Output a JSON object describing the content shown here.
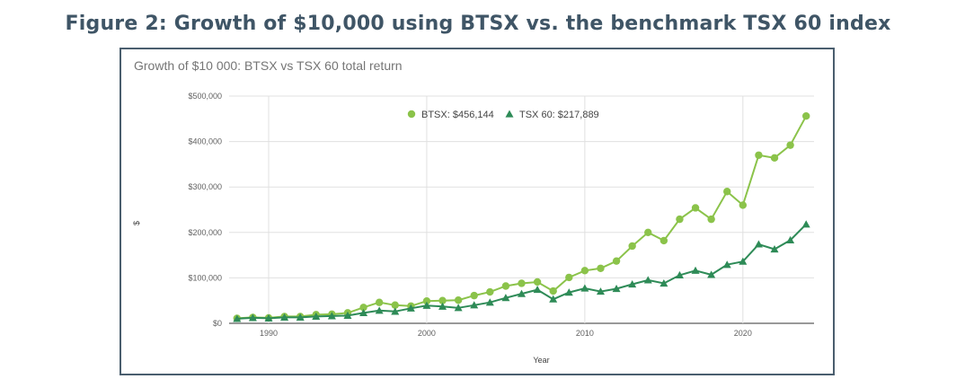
{
  "figure_title": "Figure 2: Growth of $10,000 using BTSX vs. the benchmark TSX 60 index",
  "chart_data": {
    "type": "line",
    "title": "Growth of $10 000: BTSX vs TSX 60 total return",
    "xlabel": "Year",
    "ylabel": "$",
    "xlim": [
      1987.5,
      2024.5
    ],
    "ylim": [
      0,
      500000
    ],
    "x_ticks": [
      1990,
      2000,
      2010,
      2020
    ],
    "y_ticks": [
      0,
      100000,
      200000,
      300000,
      400000,
      500000
    ],
    "y_tick_labels": [
      "$0",
      "$100,000",
      "$200,000",
      "$300,000",
      "$400,000",
      "$500,000"
    ],
    "grid": true,
    "legend_position": "top",
    "x": [
      1988,
      1989,
      1990,
      1991,
      1992,
      1993,
      1994,
      1995,
      1996,
      1997,
      1998,
      1999,
      2000,
      2001,
      2002,
      2003,
      2004,
      2005,
      2006,
      2007,
      2008,
      2009,
      2010,
      2011,
      2012,
      2013,
      2014,
      2015,
      2016,
      2017,
      2018,
      2019,
      2020,
      2021,
      2022,
      2023,
      2024
    ],
    "series": [
      {
        "name": "BTSX: $456,144",
        "color": "#8bc34a",
        "marker": "circle",
        "values": [
          11000,
          13000,
          12000,
          15000,
          15000,
          19000,
          20000,
          23000,
          35000,
          46000,
          40000,
          38000,
          49000,
          50000,
          51000,
          61000,
          69000,
          82000,
          88000,
          91000,
          71000,
          101000,
          116000,
          121000,
          137000,
          170000,
          200000,
          182000,
          229000,
          254000,
          229000,
          290000,
          260000,
          370000,
          364000,
          392000,
          456144
        ]
      },
      {
        "name": "TSX 60: $217,889",
        "color": "#2e8b57",
        "marker": "triangle",
        "values": [
          10000,
          12000,
          11000,
          13000,
          13000,
          15000,
          16000,
          17000,
          23000,
          28000,
          26000,
          33000,
          39000,
          37000,
          34000,
          40000,
          46000,
          56000,
          65000,
          74000,
          53000,
          68000,
          77000,
          70000,
          76000,
          86000,
          95000,
          88000,
          106000,
          116000,
          107000,
          129000,
          136000,
          174000,
          163000,
          183000,
          217889
        ]
      }
    ]
  }
}
